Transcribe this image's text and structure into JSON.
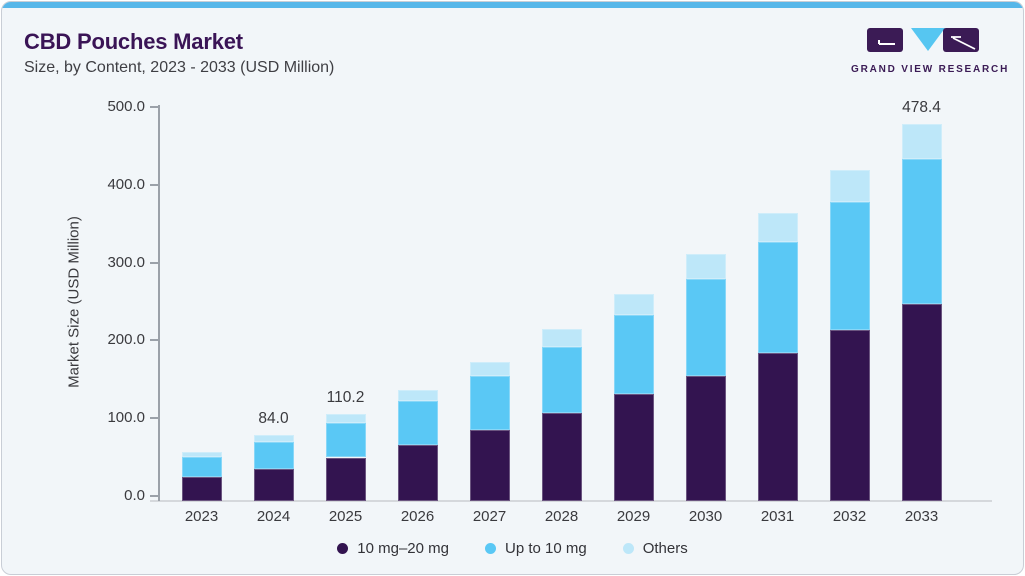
{
  "header": {
    "title": "CBD Pouches Market",
    "subtitle": "Size, by Content, 2023 - 2033 (USD Million)",
    "logo_text": "GRAND VIEW RESEARCH"
  },
  "colors": {
    "accent_band": "#57b7e9",
    "series_dark_purple": "#331450",
    "series_mid_blue": "#5ac8f5",
    "series_light_blue": "#bde7f9",
    "title_purple": "#3a1456",
    "card_background": "#f2f6f9"
  },
  "chart_data": {
    "type": "bar",
    "stacked": true,
    "title": "CBD Pouches Market Size, by Content, 2023 - 2033 (USD Million)",
    "categories": [
      "2023",
      "2024",
      "2025",
      "2026",
      "2027",
      "2028",
      "2029",
      "2030",
      "2031",
      "2032",
      "2033"
    ],
    "series": [
      {
        "name": "10 mg–20 mg",
        "color": "#331450",
        "values": [
          31.0,
          41.2,
          55.2,
          71.1,
          89.6,
          111.5,
          135.9,
          159.2,
          187.5,
          216.7,
          249.7
        ]
      },
      {
        "name": "Up to 10 mg",
        "color": "#5ac8f5",
        "values": [
          24.8,
          33.9,
          43.4,
          55.6,
          69.6,
          84.0,
          100.4,
          122.0,
          141.0,
          162.6,
          184.2
        ]
      },
      {
        "name": "Others",
        "color": "#bde7f9",
        "values": [
          6.6,
          8.9,
          11.6,
          14.4,
          17.7,
          22.9,
          26.2,
          32.1,
          36.5,
          41.2,
          44.5
        ]
      }
    ],
    "totals": [
      62.4,
      84.0,
      110.2,
      141.1,
      176.9,
      218.4,
      262.5,
      313.3,
      365.0,
      420.5,
      478.4
    ],
    "bar_labels": [
      "",
      "84.0",
      "110.2",
      "",
      "",
      "",
      "",
      "",
      "",
      "",
      "478.4"
    ],
    "ylabel": "Market Size (USD Million)",
    "yticks": [
      "0.0",
      "100.0",
      "200.0",
      "300.0",
      "400.0",
      "500.0"
    ],
    "ylim": [
      0,
      500
    ],
    "grid": false,
    "legend_position": "bottom"
  }
}
